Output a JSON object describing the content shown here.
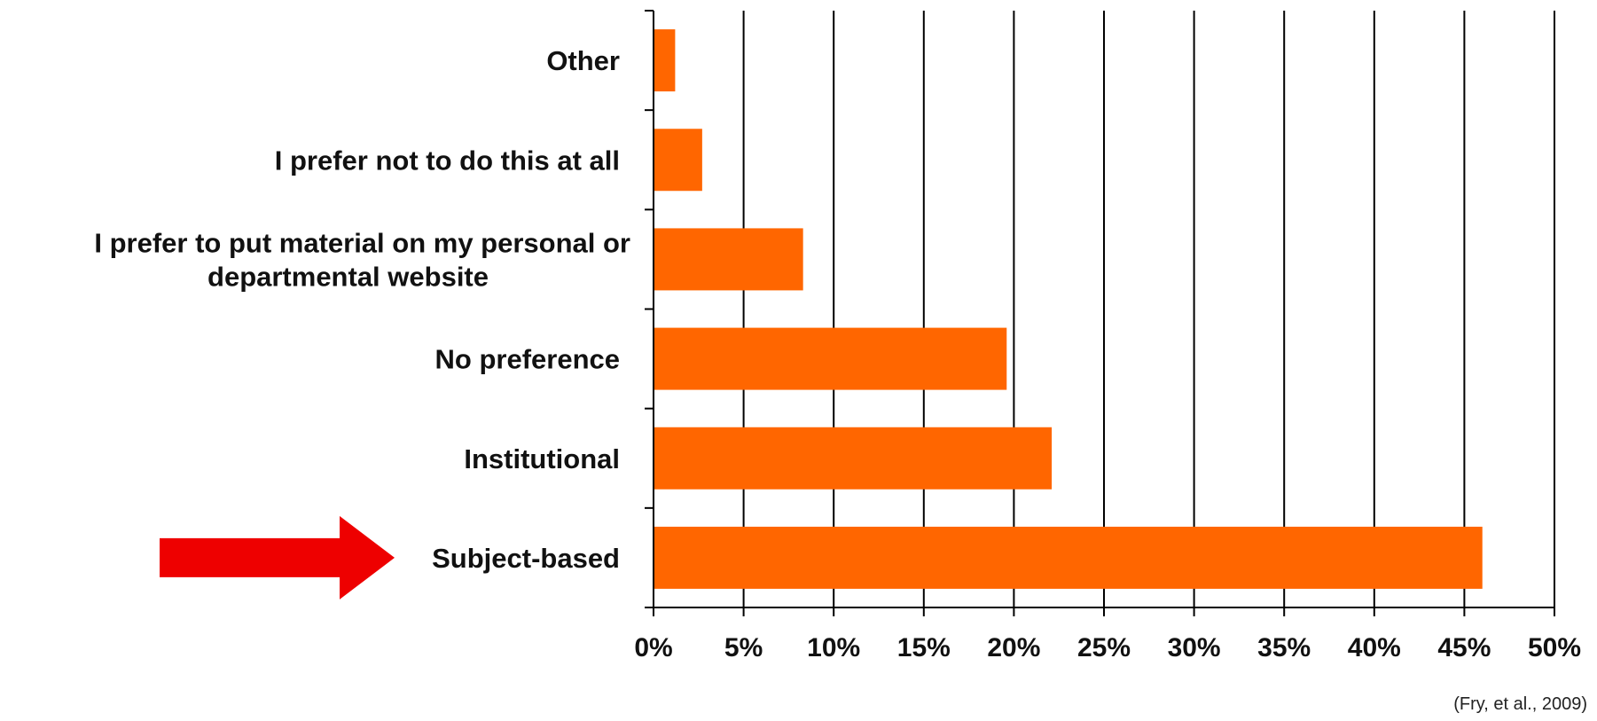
{
  "chart_data": {
    "type": "bar",
    "orientation": "horizontal",
    "categories": [
      "Other",
      "I prefer not to do this at all",
      "I prefer to put material on my personal or departmental website",
      "No preference",
      "Institutional",
      "Subject-based"
    ],
    "category_label_lines": [
      [
        "Other"
      ],
      [
        "I prefer not to do this at all"
      ],
      [
        "I prefer to put material on my personal or",
        "departmental website"
      ],
      [
        "No preference"
      ],
      [
        "Institutional"
      ],
      [
        "Subject-based"
      ]
    ],
    "values": [
      1.2,
      2.7,
      8.3,
      19.6,
      22.1,
      46.0
    ],
    "xlim": [
      0,
      50
    ],
    "xticks": [
      0,
      5,
      10,
      15,
      20,
      25,
      30,
      35,
      40,
      45,
      50
    ],
    "xtick_labels": [
      "0%",
      "5%",
      "10%",
      "15%",
      "20%",
      "25%",
      "30%",
      "35%",
      "40%",
      "45%",
      "50%"
    ],
    "title": "",
    "xlabel": "",
    "ylabel": "",
    "grid": "vertical",
    "legend": "none",
    "highlighted_category": "Subject-based",
    "annotation": "(Fry, et al., 2009)",
    "colors": {
      "bar": "#FF6600",
      "arrow": "#EE0000",
      "grid": "#000000",
      "axis": "#000000"
    }
  }
}
